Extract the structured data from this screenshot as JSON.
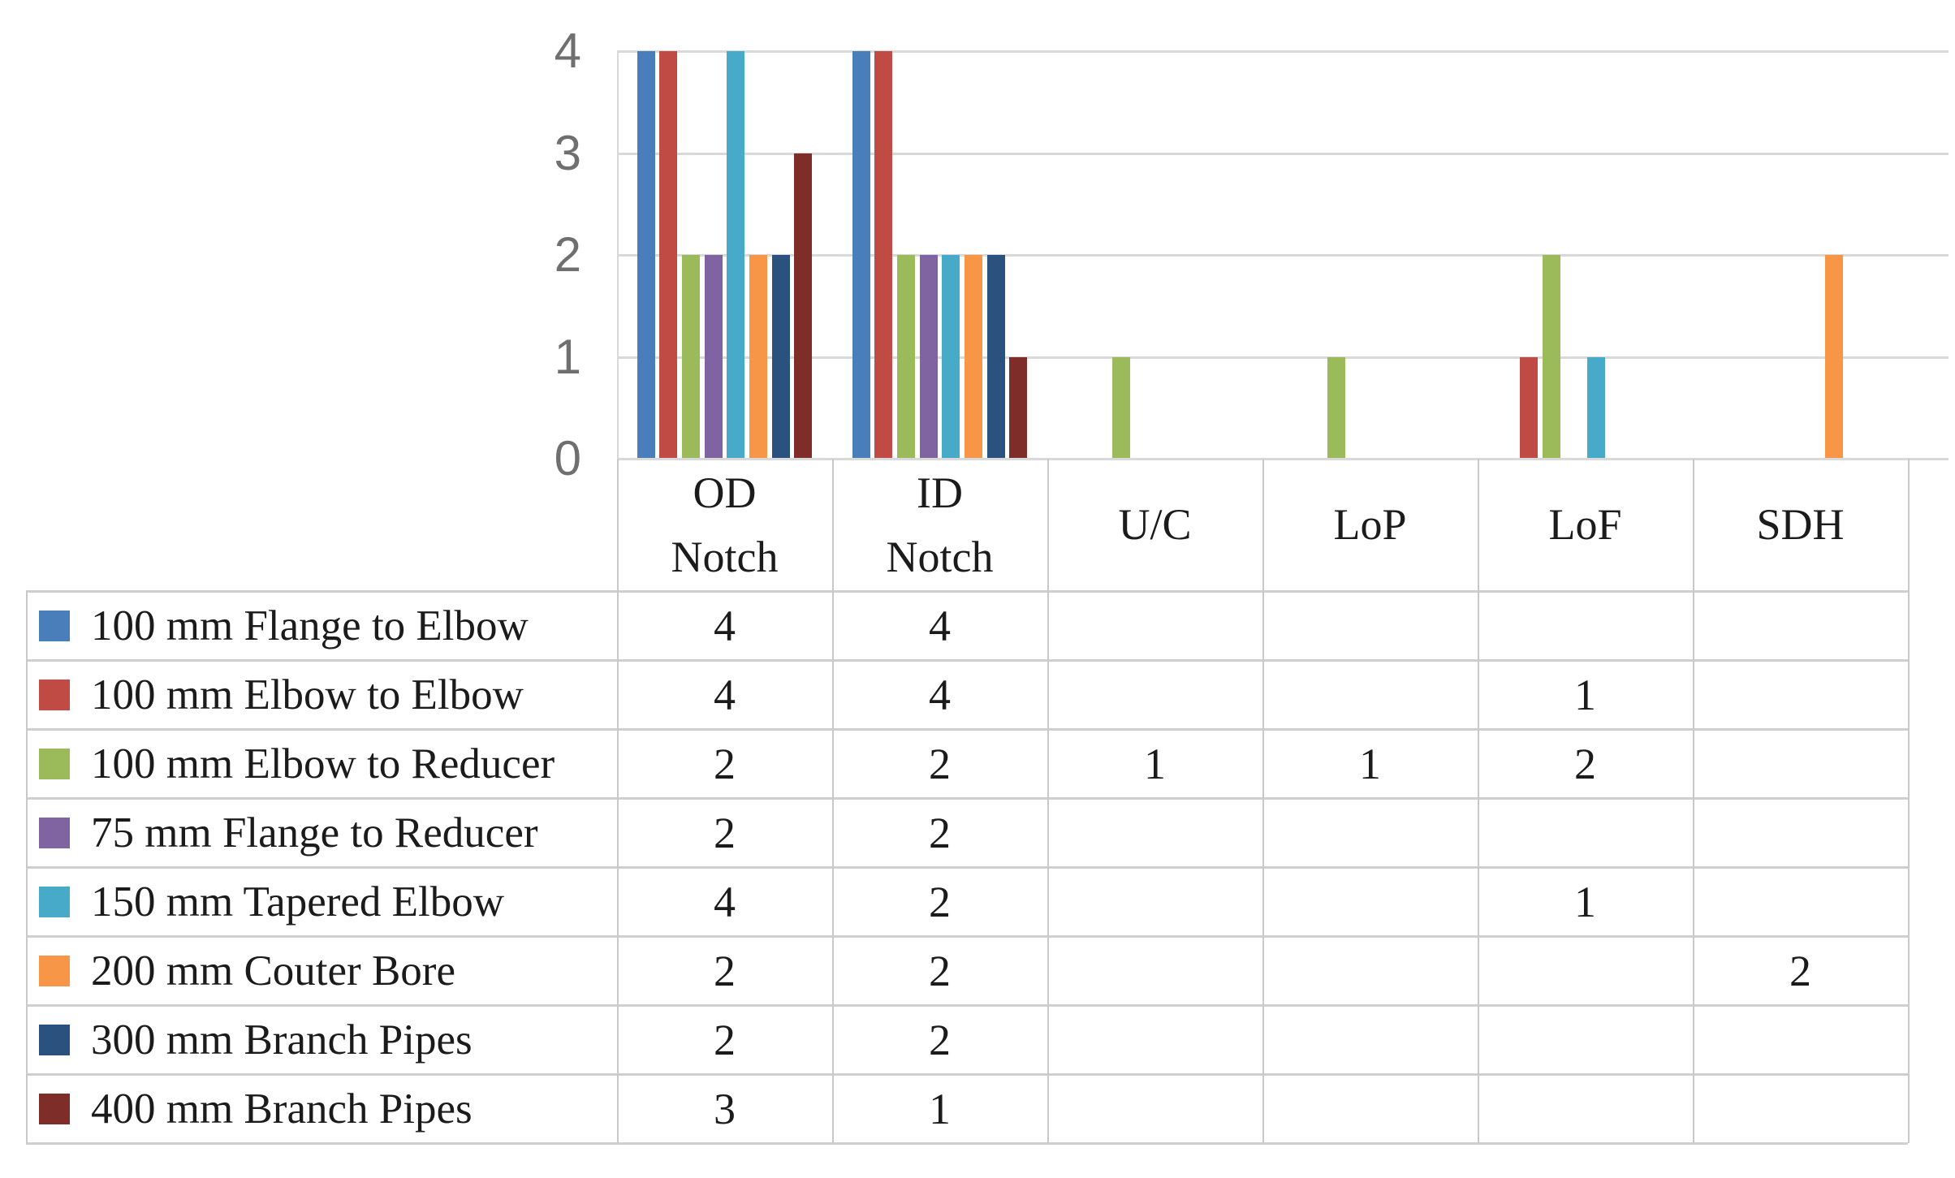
{
  "chart_data": {
    "type": "bar",
    "title": "",
    "xlabel": "",
    "ylabel": "",
    "ylim": [
      0,
      4
    ],
    "yticks": [
      "0",
      "1",
      "2",
      "3",
      "4"
    ],
    "grid": "horizontal",
    "legend_position": "table-left-column",
    "categories": [
      "OD Notch",
      "ID Notch",
      "U/C",
      "LoP",
      "LoF",
      "SDH"
    ],
    "category_header_lines": [
      [
        "OD",
        "Notch"
      ],
      [
        "ID",
        "Notch"
      ],
      [
        "U/C"
      ],
      [
        "LoP"
      ],
      [
        "LoF"
      ],
      [
        "SDH"
      ]
    ],
    "series": [
      {
        "name": "100 mm Flange to Elbow",
        "color": "#4a7ebb",
        "values": [
          4,
          4,
          null,
          null,
          null,
          null
        ]
      },
      {
        "name": "100 mm Elbow to Elbow",
        "color": "#c04b45",
        "values": [
          4,
          4,
          null,
          null,
          1,
          null
        ]
      },
      {
        "name": "100 mm Elbow to Reducer",
        "color": "#9bba59",
        "values": [
          2,
          2,
          1,
          1,
          2,
          null
        ]
      },
      {
        "name": "75 mm Flange to Reducer",
        "color": "#8064a2",
        "values": [
          2,
          2,
          null,
          null,
          null,
          null
        ]
      },
      {
        "name": "150 mm Tapered Elbow",
        "color": "#47aac8",
        "values": [
          4,
          2,
          null,
          null,
          1,
          null
        ]
      },
      {
        "name": "200 mm Couter Bore",
        "color": "#f79646",
        "values": [
          2,
          2,
          null,
          null,
          null,
          2
        ]
      },
      {
        "name": "300 mm Branch Pipes",
        "color": "#2b517e",
        "values": [
          2,
          2,
          null,
          null,
          null,
          null
        ]
      },
      {
        "name": "400 mm Branch Pipes",
        "color": "#7e2d28",
        "values": [
          3,
          1,
          null,
          null,
          null,
          null
        ]
      }
    ],
    "colors": {
      "gridline": "#d9d9d9",
      "table_border": "#cccccc",
      "tick_label": "#6f6f6f",
      "text": "#1b1b1b"
    }
  }
}
